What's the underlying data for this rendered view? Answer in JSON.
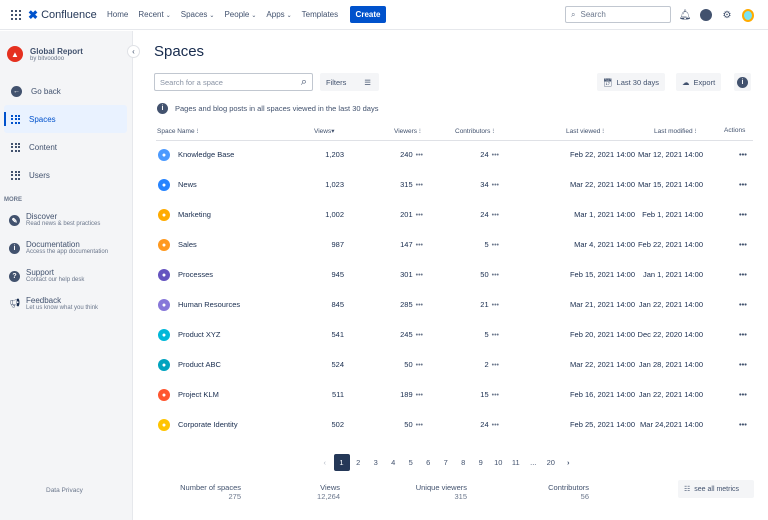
{
  "topnav": {
    "product": "Confluence",
    "items": [
      "Home",
      "Recent",
      "Spaces",
      "People",
      "Apps",
      "Templates"
    ],
    "create": "Create",
    "search_placeholder": "Search"
  },
  "sidebar": {
    "app_title": "Global Report",
    "app_subtitle": "by bitvoodoo",
    "go_back": "Go back",
    "items": [
      {
        "label": "Spaces",
        "active": true
      },
      {
        "label": "Content"
      },
      {
        "label": "Users"
      }
    ],
    "more_heading": "MORE",
    "more": [
      {
        "title": "Discover",
        "desc": "Read news & best practices",
        "icon": "pencil-icon"
      },
      {
        "title": "Documentation",
        "desc": "Access the app documentation",
        "icon": "info-icon"
      },
      {
        "title": "Support",
        "desc": "Contact our help desk",
        "icon": "question-icon"
      },
      {
        "title": "Feedback",
        "desc": "Let us know what you think",
        "icon": "megaphone-icon"
      }
    ],
    "footer": "Data Privacy"
  },
  "main": {
    "title": "Spaces",
    "search_placeholder": "Search for a space",
    "filters": "Filters",
    "date_range": "Last 30 days",
    "export": "Export",
    "info": "Pages and blog posts in all spaces viewed in the last 30 days",
    "columns": [
      "Space Name",
      "Views",
      "Viewers",
      "Contributors",
      "Last viewed",
      "Last modified",
      "Actions"
    ],
    "rows": [
      {
        "name": "Knowledge Base",
        "views": "1,203",
        "viewers": "240",
        "contributors": "24",
        "last_viewed": "Feb 22, 2021  14:00",
        "last_modified": "Mar 12, 2021  14:00",
        "color": "#4c9aff"
      },
      {
        "name": "News",
        "views": "1,023",
        "viewers": "315",
        "contributors": "34",
        "last_viewed": "Mar 22, 2021  14:00",
        "last_modified": "Mar 15, 2021  14:00",
        "color": "#2684ff"
      },
      {
        "name": "Marketing",
        "views": "1,002",
        "viewers": "201",
        "contributors": "24",
        "last_viewed": "Mar 1, 2021  14:00",
        "last_modified": "Feb 1, 2021  14:00",
        "color": "#ffab00"
      },
      {
        "name": "Sales",
        "views": "987",
        "viewers": "147",
        "contributors": "5",
        "last_viewed": "Mar 4, 2021  14:00",
        "last_modified": "Feb 22, 2021  14:00",
        "color": "#ff991f"
      },
      {
        "name": "Processes",
        "views": "945",
        "viewers": "301",
        "contributors": "50",
        "last_viewed": "Feb 15, 2021  14:00",
        "last_modified": "Jan 1, 2021  14:00",
        "color": "#6554c0"
      },
      {
        "name": "Human Resources",
        "views": "845",
        "viewers": "285",
        "contributors": "21",
        "last_viewed": "Mar 21, 2021  14:00",
        "last_modified": "Jan 22, 2021  14:00",
        "color": "#8777d9"
      },
      {
        "name": "Product XYZ",
        "views": "541",
        "viewers": "245",
        "contributors": "5",
        "last_viewed": "Feb 20, 2021  14:00",
        "last_modified": "Dec 22, 2020  14:00",
        "color": "#00b8d9"
      },
      {
        "name": "Product ABC",
        "views": "524",
        "viewers": "50",
        "contributors": "2",
        "last_viewed": "Mar 22, 2021  14:00",
        "last_modified": "Jan 28, 2021  14:00",
        "color": "#00a3bf"
      },
      {
        "name": "Project KLM",
        "views": "511",
        "viewers": "189",
        "contributors": "15",
        "last_viewed": "Feb 16, 2021  14:00",
        "last_modified": "Jan 22, 2021  14:00",
        "color": "#ff5630"
      },
      {
        "name": "Corporate Identity",
        "views": "502",
        "viewers": "50",
        "contributors": "24",
        "last_viewed": "Feb 25, 2021  14:00",
        "last_modified": "Mar 24,2021  14:00",
        "color": "#ffc400"
      }
    ],
    "pagination": {
      "pages": [
        "1",
        "2",
        "3",
        "4",
        "5",
        "6",
        "7",
        "8",
        "9",
        "10",
        "11",
        "...",
        "20"
      ],
      "current": "1"
    },
    "metrics": [
      {
        "label": "Number of spaces",
        "value": "275"
      },
      {
        "label": "Views",
        "value": "12,264"
      },
      {
        "label": "Unique viewers",
        "value": "315"
      },
      {
        "label": "Contributors",
        "value": "56"
      }
    ],
    "see_all": "see all metrics"
  }
}
